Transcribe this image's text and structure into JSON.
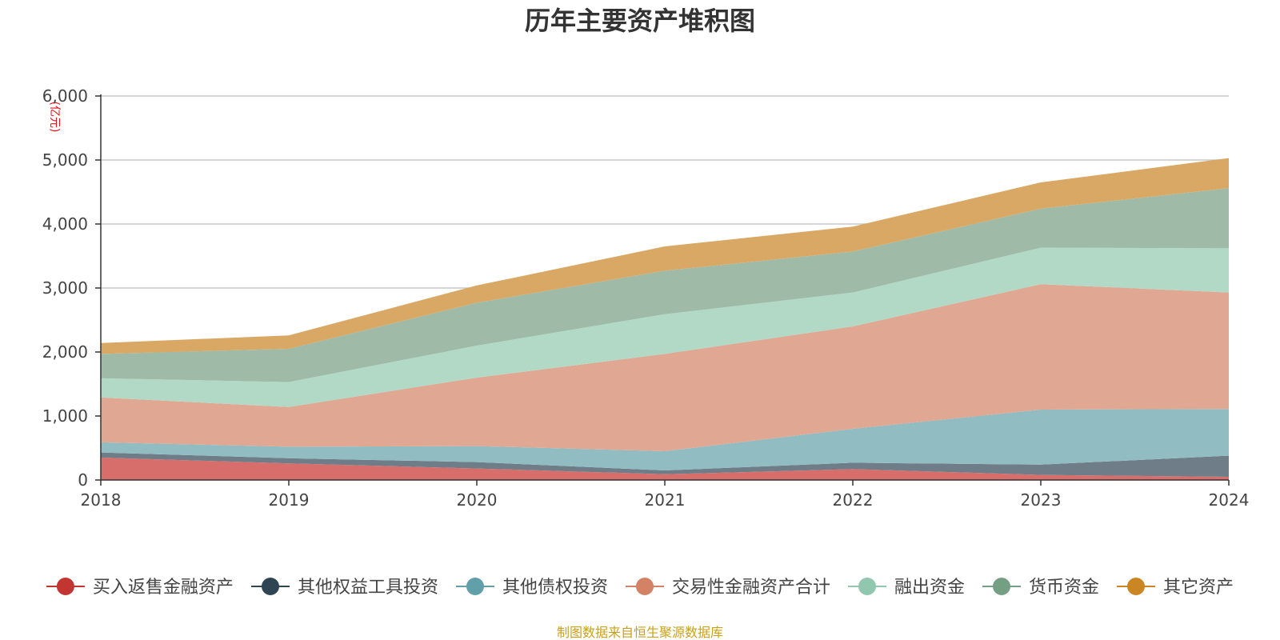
{
  "chart_data": {
    "type": "area",
    "stacked": true,
    "title": "历年主要资产堆积图",
    "unit_label": "(亿元)",
    "source_note": "制图数据来自恒生聚源数据库",
    "x": [
      "2018",
      "2019",
      "2020",
      "2021",
      "2022",
      "2023",
      "2024"
    ],
    "ylim": [
      0,
      6000
    ],
    "yticks": [
      0,
      1000,
      2000,
      3000,
      4000,
      5000,
      6000
    ],
    "ytick_labels": [
      "0",
      "1,000",
      "2,000",
      "3,000",
      "4,000",
      "5,000",
      "6,000"
    ],
    "grid": true,
    "legend_position": "bottom",
    "series": [
      {
        "name": "买入返售金融资产",
        "color": "#c23531",
        "fill": "#d76e6c",
        "values": [
          350,
          260,
          180,
          90,
          170,
          80,
          50
        ]
      },
      {
        "name": "其他权益工具投资",
        "color": "#2f4554",
        "fill": "#6e7d87",
        "values": [
          80,
          80,
          100,
          60,
          100,
          160,
          330
        ]
      },
      {
        "name": "其他债权投资",
        "color": "#61a0a8",
        "fill": "#90bcc2",
        "values": [
          160,
          180,
          250,
          300,
          530,
          860,
          730
        ]
      },
      {
        "name": "交易性金融资产合计",
        "color": "#d48265",
        "fill": "#e0a793",
        "values": [
          700,
          620,
          1070,
          1520,
          1600,
          1960,
          1820
        ]
      },
      {
        "name": "融出资金",
        "color": "#91c7ae",
        "fill": "#b2d9c6",
        "values": [
          300,
          390,
          500,
          620,
          530,
          570,
          690
        ]
      },
      {
        "name": "货币资金",
        "color": "#749f83",
        "fill": "#9fbba8",
        "values": [
          380,
          520,
          670,
          680,
          640,
          610,
          940
        ]
      },
      {
        "name": "其它资产",
        "color": "#ca8622",
        "fill": "#d9a864",
        "values": [
          170,
          210,
          270,
          380,
          390,
          410,
          470
        ]
      }
    ]
  }
}
